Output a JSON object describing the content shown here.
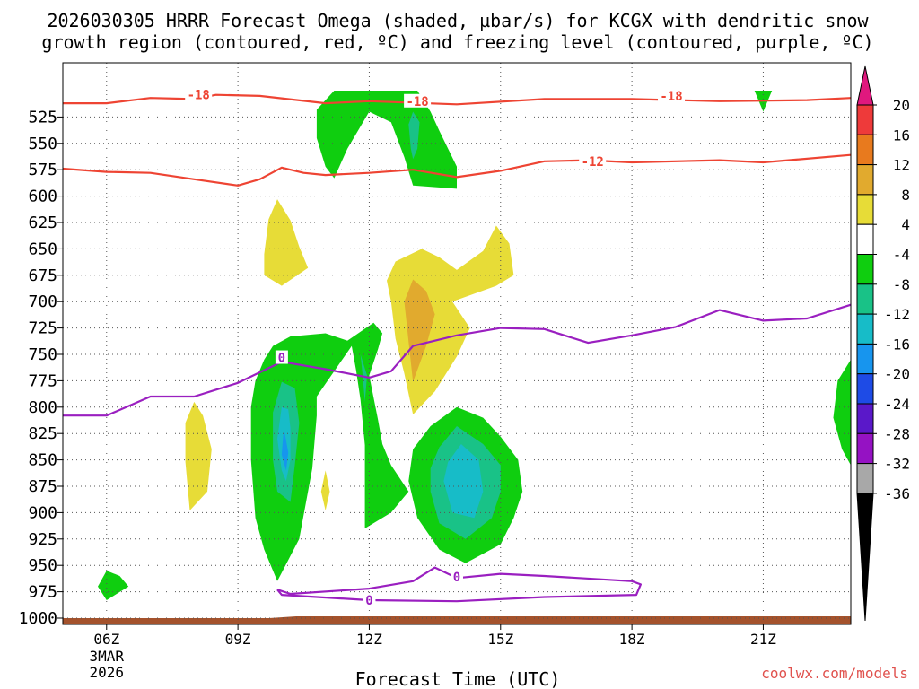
{
  "chart_data": {
    "type": "heatmap",
    "title_line1": "2026030305 HRRR Forecast Omega (shaded, µbar/s) for KCGX with dendritic snow",
    "title_line2": "growth region (contoured, red, ºC) and freezing level (contoured, purple, ºC)",
    "xlabel": "Forecast Time (UTC)",
    "credit": "coolwx.com/models",
    "x_ticks": [
      {
        "hour": 6,
        "label": "06Z",
        "sub1": "3MAR",
        "sub2": "2026"
      },
      {
        "hour": 9,
        "label": "09Z"
      },
      {
        "hour": 12,
        "label": "12Z"
      },
      {
        "hour": 15,
        "label": "15Z"
      },
      {
        "hour": 18,
        "label": "18Z"
      },
      {
        "hour": 21,
        "label": "21Z"
      }
    ],
    "xlim": [
      5.0,
      23.0
    ],
    "ylim": [
      1000,
      500
    ],
    "y_ticks": [
      525,
      550,
      575,
      600,
      625,
      650,
      675,
      700,
      725,
      750,
      775,
      800,
      825,
      850,
      875,
      900,
      925,
      950,
      975,
      1000
    ],
    "colorbar": {
      "labels": [
        "20",
        "16",
        "12",
        "8",
        "4",
        "-4",
        "-8",
        "-12",
        "-16",
        "-20",
        "-24",
        "-28",
        "-32",
        "-36"
      ],
      "colors": [
        "#ee3a3a",
        "#e87a1e",
        "#e1aa2e",
        "#e7dc37",
        "#ffffff",
        "#0fce0f",
        "#19c287",
        "#17bcc8",
        "#1795ee",
        "#1e4be6",
        "#5a18c9",
        "#9512c3",
        "#a8a8a8"
      ],
      "top_arrow_color": "#e0187e",
      "bottom_arrow_color": "#000000"
    },
    "isotherms": [
      {
        "label": "-18",
        "color": "#ee4433",
        "points": [
          [
            5.0,
            512
          ],
          [
            6.0,
            512
          ],
          [
            7.0,
            507
          ],
          [
            8.0,
            508
          ],
          [
            8.5,
            504
          ],
          [
            9.5,
            505
          ],
          [
            11.0,
            512
          ],
          [
            12.0,
            510
          ],
          [
            14.0,
            513
          ],
          [
            16.0,
            508
          ],
          [
            18.0,
            508
          ],
          [
            20.0,
            510
          ],
          [
            22.0,
            509
          ],
          [
            23.0,
            507
          ]
        ],
        "label_at": [
          [
            8.1,
            504
          ],
          [
            13.1,
            510
          ],
          [
            18.9,
            505
          ]
        ]
      },
      {
        "label": "-12",
        "color": "#ee4433",
        "points": [
          [
            5.0,
            574
          ],
          [
            6.0,
            577
          ],
          [
            7.0,
            578
          ],
          [
            8.0,
            584
          ],
          [
            9.0,
            590
          ],
          [
            9.5,
            584
          ],
          [
            10.0,
            573
          ],
          [
            10.5,
            578
          ],
          [
            11.0,
            580
          ],
          [
            12.0,
            578
          ],
          [
            13.0,
            575
          ],
          [
            14.0,
            582
          ],
          [
            15.0,
            576
          ],
          [
            16.0,
            567
          ],
          [
            17.0,
            566
          ],
          [
            18.0,
            568
          ],
          [
            20.0,
            566
          ],
          [
            21.0,
            568
          ],
          [
            23.0,
            561
          ]
        ],
        "label_at": [
          [
            17.1,
            567
          ]
        ]
      },
      {
        "label": "0",
        "color": "#9a1fc0",
        "points": [
          [
            5.0,
            808
          ],
          [
            6.0,
            808
          ],
          [
            7.0,
            790
          ],
          [
            8.0,
            790
          ],
          [
            9.0,
            777
          ],
          [
            10.0,
            757
          ],
          [
            11.0,
            764
          ],
          [
            12.0,
            772
          ],
          [
            12.5,
            766
          ],
          [
            13.0,
            742
          ],
          [
            14.0,
            732
          ],
          [
            15.0,
            725
          ],
          [
            16.0,
            726
          ],
          [
            17.0,
            739
          ],
          [
            18.0,
            732
          ],
          [
            19.0,
            724
          ],
          [
            20.0,
            708
          ],
          [
            21.0,
            718
          ],
          [
            22.0,
            716
          ],
          [
            23.0,
            703
          ]
        ],
        "label_at": [
          [
            10.0,
            753
          ]
        ]
      },
      {
        "label": "0",
        "color": "#9a1fc0",
        "points": [
          [
            9.9,
            973
          ],
          [
            10.2,
            977
          ],
          [
            12.0,
            972
          ],
          [
            13.0,
            965
          ],
          [
            13.5,
            952
          ],
          [
            14.0,
            962
          ],
          [
            15.0,
            958
          ],
          [
            16.0,
            960
          ],
          [
            18.0,
            965
          ],
          [
            18.2,
            968
          ],
          [
            18.1,
            978
          ],
          [
            16.0,
            980
          ],
          [
            14.0,
            984
          ],
          [
            12.0,
            983
          ],
          [
            10.0,
            978
          ],
          [
            9.9,
            973
          ]
        ],
        "label_at": [
          [
            14.0,
            961
          ],
          [
            12.0,
            983
          ]
        ]
      }
    ],
    "omega_regions": [
      {
        "value": "-6",
        "color": "#0fce0f",
        "points": [
          [
            11.2,
            500
          ],
          [
            10.8,
            518
          ],
          [
            10.8,
            545
          ],
          [
            11.0,
            572
          ],
          [
            11.2,
            583
          ],
          [
            11.5,
            555
          ],
          [
            12.0,
            520
          ],
          [
            12.5,
            530
          ],
          [
            12.8,
            563
          ],
          [
            13.0,
            590
          ],
          [
            14.0,
            593
          ],
          [
            14.0,
            572
          ],
          [
            13.6,
            538
          ],
          [
            13.4,
            520
          ],
          [
            13.1,
            500
          ]
        ]
      },
      {
        "value": "-10",
        "color": "#19c287",
        "points": [
          [
            13.0,
            520
          ],
          [
            13.15,
            530
          ],
          [
            13.1,
            555
          ],
          [
            13.0,
            565
          ],
          [
            12.95,
            555
          ],
          [
            12.9,
            532
          ]
        ]
      },
      {
        "value": "-6",
        "color": "#0fce0f",
        "points": [
          [
            20.8,
            500
          ],
          [
            21.0,
            520
          ],
          [
            21.2,
            500
          ]
        ]
      },
      {
        "value": "4",
        "color": "#e7dc37",
        "points": [
          [
            9.9,
            603
          ],
          [
            9.7,
            622
          ],
          [
            9.6,
            655
          ],
          [
            9.6,
            675
          ],
          [
            10.0,
            685
          ],
          [
            10.6,
            668
          ],
          [
            10.4,
            648
          ],
          [
            10.2,
            623
          ]
        ]
      },
      {
        "value": "4",
        "color": "#e7dc37",
        "points": [
          [
            13.2,
            650
          ],
          [
            12.6,
            662
          ],
          [
            12.4,
            680
          ],
          [
            12.5,
            700
          ],
          [
            12.6,
            735
          ],
          [
            12.8,
            768
          ],
          [
            13.0,
            807
          ],
          [
            13.5,
            785
          ],
          [
            14.0,
            752
          ],
          [
            14.3,
            725
          ],
          [
            13.9,
            700
          ],
          [
            14.9,
            685
          ],
          [
            15.3,
            675
          ],
          [
            15.2,
            645
          ],
          [
            14.9,
            628
          ],
          [
            14.6,
            652
          ],
          [
            14.0,
            670
          ],
          [
            13.6,
            658
          ]
        ]
      },
      {
        "value": "12",
        "color": "#e1aa2e",
        "points": [
          [
            13.0,
            679
          ],
          [
            12.8,
            700
          ],
          [
            12.9,
            738
          ],
          [
            13.0,
            776
          ],
          [
            13.3,
            742
          ],
          [
            13.5,
            712
          ],
          [
            13.3,
            690
          ]
        ]
      },
      {
        "value": "4",
        "color": "#e7dc37",
        "points": [
          [
            8.0,
            795
          ],
          [
            7.8,
            815
          ],
          [
            7.8,
            852
          ],
          [
            7.9,
            898
          ],
          [
            8.3,
            880
          ],
          [
            8.4,
            840
          ],
          [
            8.2,
            808
          ]
        ]
      },
      {
        "value": "4",
        "color": "#e7dc37",
        "points": [
          [
            11.0,
            860
          ],
          [
            10.9,
            880
          ],
          [
            11.0,
            898
          ],
          [
            11.1,
            880
          ]
        ]
      },
      {
        "value": "-6",
        "color": "#0fce0f",
        "points": [
          [
            9.4,
            775
          ],
          [
            9.3,
            800
          ],
          [
            9.3,
            850
          ],
          [
            9.4,
            905
          ],
          [
            9.6,
            935
          ],
          [
            9.9,
            965
          ],
          [
            10.4,
            925
          ],
          [
            10.7,
            858
          ],
          [
            10.8,
            808
          ],
          [
            10.8,
            790
          ],
          [
            11.6,
            742
          ],
          [
            11.7,
            765
          ],
          [
            11.8,
            793
          ],
          [
            11.9,
            836
          ],
          [
            11.9,
            872
          ],
          [
            11.9,
            915
          ],
          [
            12.5,
            900
          ],
          [
            12.9,
            880
          ],
          [
            12.5,
            855
          ],
          [
            12.3,
            835
          ],
          [
            12.2,
            812
          ],
          [
            12.0,
            770
          ],
          [
            12.2,
            745
          ],
          [
            12.3,
            730
          ],
          [
            12.1,
            720
          ],
          [
            11.5,
            737
          ],
          [
            11.0,
            730
          ],
          [
            10.2,
            733
          ],
          [
            9.8,
            742
          ],
          [
            9.6,
            755
          ]
        ]
      },
      {
        "value": "-10",
        "color": "#19c287",
        "points": [
          [
            10.0,
            776
          ],
          [
            9.8,
            805
          ],
          [
            9.8,
            850
          ],
          [
            9.9,
            880
          ],
          [
            10.2,
            890
          ],
          [
            10.3,
            855
          ],
          [
            10.4,
            815
          ],
          [
            10.3,
            782
          ]
        ]
      },
      {
        "value": "-14",
        "color": "#17bcc8",
        "points": [
          [
            10.0,
            800
          ],
          [
            9.9,
            830
          ],
          [
            10.0,
            860
          ],
          [
            10.1,
            870
          ],
          [
            10.2,
            850
          ],
          [
            10.2,
            820
          ],
          [
            10.15,
            802
          ]
        ]
      },
      {
        "value": "-18",
        "color": "#1795ee",
        "points": [
          [
            10.05,
            820
          ],
          [
            10.0,
            845
          ],
          [
            10.1,
            860
          ],
          [
            10.15,
            843
          ]
        ]
      },
      {
        "value": "-10",
        "color": "#19c287",
        "points": [
          [
            11.8,
            750
          ],
          [
            11.85,
            770
          ],
          [
            11.9,
            795
          ],
          [
            11.95,
            770
          ]
        ]
      },
      {
        "value": "-6",
        "color": "#0fce0f",
        "points": [
          [
            14.0,
            800
          ],
          [
            13.4,
            818
          ],
          [
            13.0,
            840
          ],
          [
            12.9,
            870
          ],
          [
            13.1,
            905
          ],
          [
            13.6,
            935
          ],
          [
            14.2,
            948
          ],
          [
            15.0,
            930
          ],
          [
            15.3,
            905
          ],
          [
            15.5,
            880
          ],
          [
            15.4,
            850
          ],
          [
            15.0,
            828
          ],
          [
            14.6,
            810
          ]
        ]
      },
      {
        "value": "-10",
        "color": "#19c287",
        "points": [
          [
            14.0,
            818
          ],
          [
            13.6,
            838
          ],
          [
            13.4,
            858
          ],
          [
            13.4,
            880
          ],
          [
            13.6,
            910
          ],
          [
            14.2,
            925
          ],
          [
            14.8,
            905
          ],
          [
            15.0,
            880
          ],
          [
            15.0,
            855
          ],
          [
            14.6,
            835
          ]
        ]
      },
      {
        "value": "-14",
        "color": "#17bcc8",
        "points": [
          [
            14.1,
            835
          ],
          [
            13.8,
            852
          ],
          [
            13.7,
            870
          ],
          [
            13.9,
            900
          ],
          [
            14.4,
            905
          ],
          [
            14.6,
            880
          ],
          [
            14.5,
            850
          ]
        ]
      },
      {
        "value": "-6",
        "color": "#0fce0f",
        "points": [
          [
            23.0,
            755
          ],
          [
            22.7,
            775
          ],
          [
            22.6,
            810
          ],
          [
            22.8,
            840
          ],
          [
            23.0,
            855
          ]
        ]
      },
      {
        "value": "-6",
        "color": "#0fce0f",
        "points": [
          [
            6.0,
            955
          ],
          [
            5.8,
            970
          ],
          [
            6.0,
            983
          ],
          [
            6.5,
            970
          ],
          [
            6.3,
            960
          ]
        ]
      }
    ],
    "ground_color": "#a4522c"
  }
}
